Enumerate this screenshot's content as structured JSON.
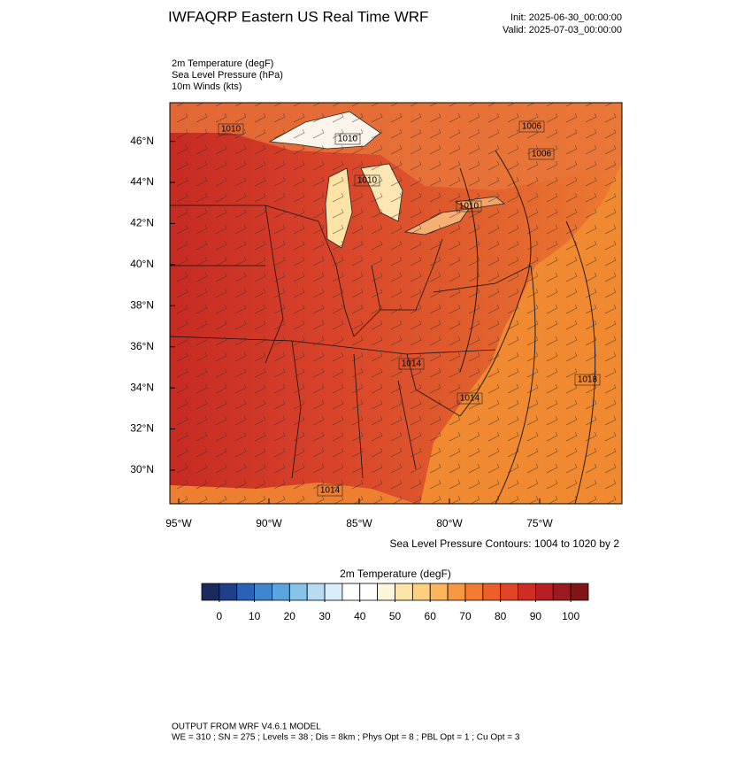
{
  "header": {
    "title": "IWFAQRP Eastern US Real Time WRF",
    "init": "Init: 2025-06-30_00:00:00",
    "valid": "Valid: 2025-07-03_00:00:00"
  },
  "fields": [
    "2m Temperature   (degF)",
    "Sea Level Pressure   (hPa)",
    "10m Winds   (kts)"
  ],
  "map": {
    "xlim": [
      -95.49,
      -70.44
    ],
    "ylim": [
      28.36,
      47.88
    ],
    "xticks": [
      {
        "value": -95,
        "label": "95°W"
      },
      {
        "value": -90,
        "label": "90°W"
      },
      {
        "value": -85,
        "label": "85°W"
      },
      {
        "value": -80,
        "label": "80°W"
      },
      {
        "value": -75,
        "label": "75°W"
      }
    ],
    "yticks": [
      {
        "value": 30,
        "label": "30°N"
      },
      {
        "value": 32,
        "label": "32°N"
      },
      {
        "value": 34,
        "label": "34°N"
      },
      {
        "value": 36,
        "label": "36°N"
      },
      {
        "value": 38,
        "label": "38°N"
      },
      {
        "value": 40,
        "label": "40°N"
      },
      {
        "value": 42,
        "label": "42°N"
      },
      {
        "value": 44,
        "label": "44°N"
      },
      {
        "value": 46,
        "label": "46°N"
      }
    ],
    "contour_labels": [
      1010,
      1010,
      1010,
      1006,
      1006,
      1010,
      1014,
      1014,
      1018,
      1014
    ],
    "contour_note": "Sea Level Pressure Contours: 1004 to 1020 by 2"
  },
  "colorbar": {
    "title": "2m Temperature  (degF)",
    "lim": [
      -5,
      105
    ],
    "colors": [
      "#1a2a5e",
      "#1f3f8a",
      "#2a63b5",
      "#3f86cc",
      "#5aa5dd",
      "#86c4ea",
      "#b5dcf2",
      "#d9eef8",
      "#ffffff",
      "#ffffff",
      "#fff5d9",
      "#fde4a8",
      "#fcd07e",
      "#fbb55a",
      "#f89840",
      "#f47b30",
      "#ec5f2a",
      "#e04527",
      "#cf2d24",
      "#b81f22",
      "#9b1a1f",
      "#7f1519"
    ],
    "ticks": [
      0,
      10,
      20,
      30,
      40,
      50,
      60,
      70,
      80,
      90,
      100
    ]
  },
  "footer": [
    "OUTPUT FROM WRF V4.6.1 MODEL",
    "WE = 310 ; SN = 275 ; Levels = 38 ; Dis = 8km ; Phys Opt = 8 ; PBL Opt = 1 ; Cu Opt = 3"
  ]
}
